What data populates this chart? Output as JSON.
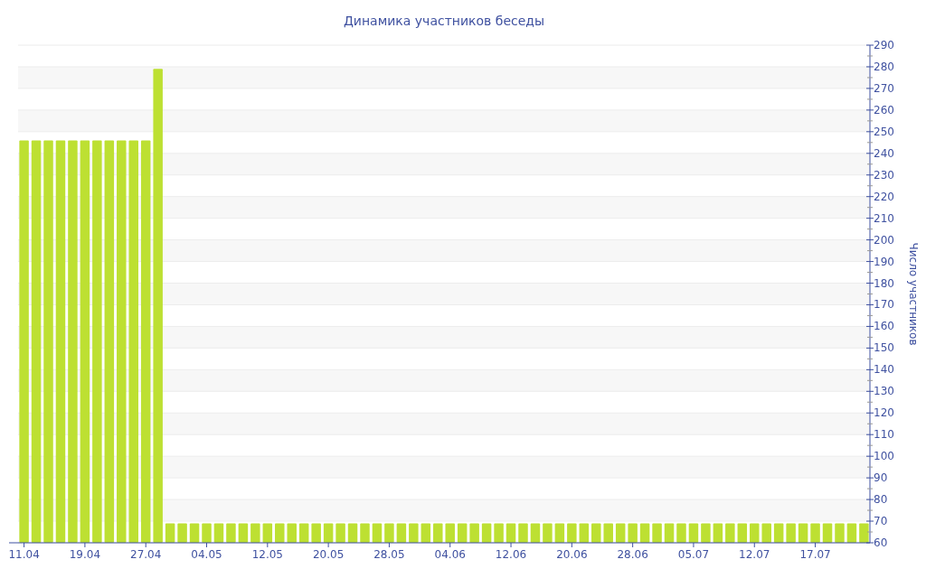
{
  "chart_data": {
    "type": "bar",
    "title": "Динамика участников беседы",
    "ylabel": "Число участников",
    "categories": [
      "11.04",
      null,
      null,
      null,
      null,
      "19.04",
      null,
      null,
      null,
      null,
      "27.04",
      null,
      null,
      null,
      null,
      "04.05",
      null,
      null,
      null,
      null,
      "12.05",
      null,
      null,
      null,
      null,
      "20.05",
      null,
      null,
      null,
      null,
      "28.05",
      null,
      null,
      null,
      null,
      "04.06",
      null,
      null,
      null,
      null,
      "12.06",
      null,
      null,
      null,
      null,
      "20.06",
      null,
      null,
      null,
      null,
      "28.06",
      null,
      null,
      null,
      null,
      "05.07",
      null,
      null,
      null,
      null,
      "12.07",
      null,
      null,
      null,
      null,
      "17.07",
      null,
      null,
      null,
      null
    ],
    "values": [
      246,
      246,
      246,
      246,
      246,
      246,
      246,
      246,
      246,
      246,
      246,
      279,
      69,
      69,
      69,
      69,
      69,
      69,
      69,
      69,
      69,
      69,
      69,
      69,
      69,
      69,
      69,
      69,
      69,
      69,
      69,
      69,
      69,
      69,
      69,
      69,
      69,
      69,
      69,
      69,
      69,
      69,
      69,
      69,
      69,
      69,
      69,
      69,
      69,
      69,
      69,
      69,
      69,
      69,
      69,
      69,
      69,
      69,
      69,
      69,
      69,
      69,
      69,
      69,
      69,
      69,
      69,
      69,
      69,
      69
    ],
    "color": "#bde032",
    "ylim": [
      60,
      290
    ],
    "yticks": [
      60,
      {
        "value": 65,
        "label": null
      },
      70,
      {
        "value": 75,
        "label": null
      },
      80,
      {
        "value": 85,
        "label": null
      },
      90,
      {
        "value": 95,
        "label": null
      },
      100,
      {
        "value": 105,
        "label": null
      },
      110,
      {
        "value": 115,
        "label": null
      },
      120,
      {
        "value": 125,
        "label": null
      },
      130,
      {
        "value": 135,
        "label": null
      },
      140,
      {
        "value": 145,
        "label": null
      },
      150,
      {
        "value": 155,
        "label": null
      },
      160,
      {
        "value": 165,
        "label": null
      },
      170,
      {
        "value": 175,
        "label": null
      },
      180,
      {
        "value": 185,
        "label": null
      },
      190,
      {
        "value": 195,
        "label": null
      },
      200,
      {
        "value": 205,
        "label": null
      },
      210,
      {
        "value": 215,
        "label": null
      },
      220,
      {
        "value": 225,
        "label": null
      },
      230,
      {
        "value": 235,
        "label": null
      },
      240,
      {
        "value": 245,
        "label": null
      },
      250,
      {
        "value": 255,
        "label": null
      },
      260,
      {
        "value": 265,
        "label": null
      },
      270,
      {
        "value": 275,
        "label": null
      },
      280,
      {
        "value": 285,
        "label": null
      },
      290
    ],
    "grid": "y"
  }
}
